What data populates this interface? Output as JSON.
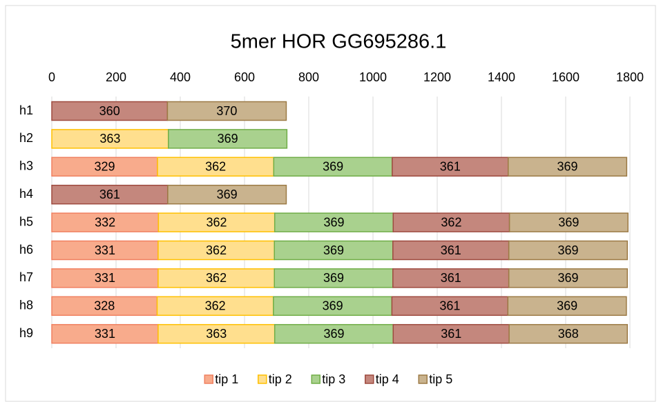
{
  "chart_data": {
    "type": "stacked-barh",
    "title": "5mer HOR GG695286.1",
    "categories": [
      "h1",
      "h2",
      "h3",
      "h4",
      "h5",
      "h6",
      "h7",
      "h8",
      "h9"
    ],
    "series": [
      {
        "name": "tip 1",
        "color": "#f8ab8c",
        "edge": "#f08060",
        "values": [
          null,
          null,
          329,
          null,
          332,
          331,
          331,
          328,
          331
        ]
      },
      {
        "name": "tip 2",
        "color": "#ffdf8e",
        "edge": "#ffc000",
        "values": [
          null,
          363,
          362,
          null,
          362,
          362,
          362,
          362,
          363
        ]
      },
      {
        "name": "tip 3",
        "color": "#a9d18e",
        "edge": "#70ad47",
        "values": [
          null,
          369,
          369,
          null,
          369,
          369,
          369,
          369,
          369
        ]
      },
      {
        "name": "tip 4",
        "color": "#c4877d",
        "edge": "#9e4a3f",
        "values": [
          360,
          null,
          361,
          361,
          362,
          361,
          361,
          361,
          361
        ]
      },
      {
        "name": "tip 5",
        "color": "#c9b38e",
        "edge": "#9c7a45",
        "values": [
          370,
          null,
          369,
          369,
          369,
          369,
          369,
          369,
          368
        ]
      }
    ],
    "xlim": [
      0,
      1800
    ],
    "xticks": [
      0,
      200,
      400,
      600,
      800,
      1000,
      1200,
      1400,
      1600,
      1800
    ],
    "grid": true,
    "legend": "bottom"
  }
}
